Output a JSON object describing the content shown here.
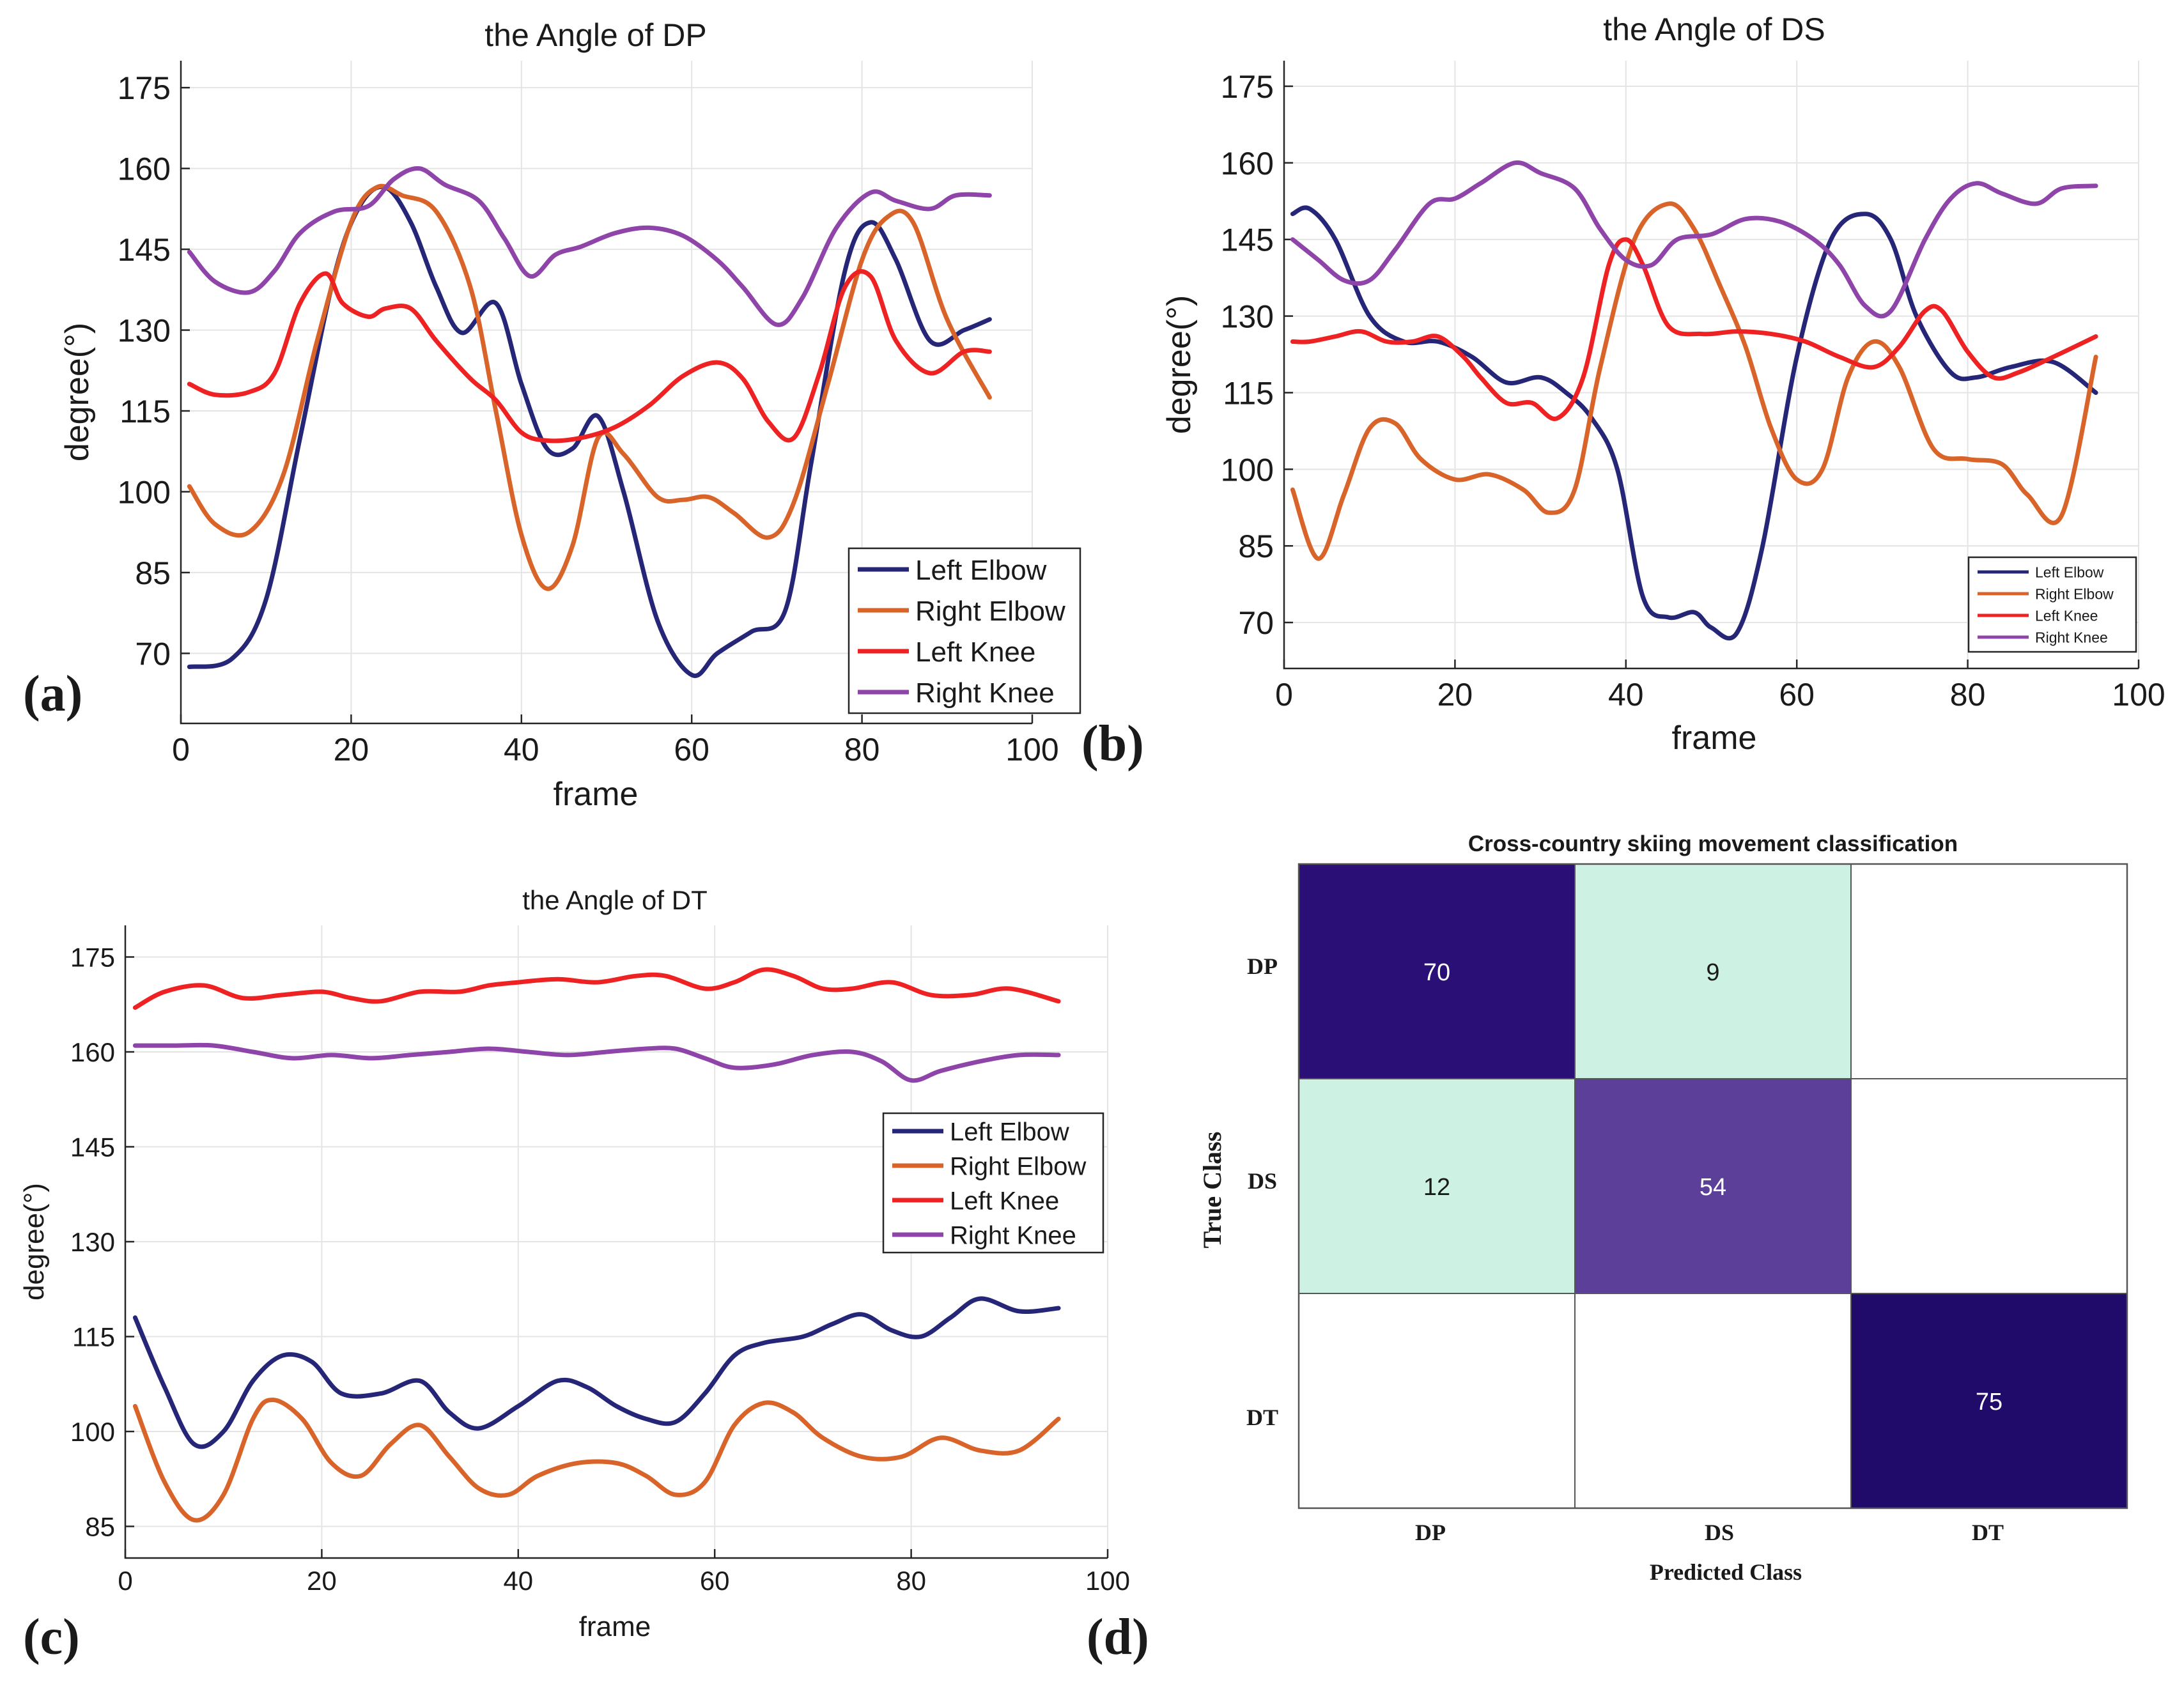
{
  "chart_data": [
    {
      "type": "line",
      "panel_label": "(a)",
      "title": "the Angle of DP",
      "xlabel": "frame",
      "ylabel": "degree(°)",
      "xlim": [
        0,
        100
      ],
      "ylim": [
        57,
        180
      ],
      "xticks": [
        0,
        20,
        40,
        60,
        80,
        100
      ],
      "yticks": [
        70,
        85,
        100,
        115,
        130,
        145,
        160,
        175
      ],
      "grid": true,
      "legend_position": "bottom-right",
      "series": [
        {
          "name": "Left Elbow",
          "color": "#262678",
          "x": [
            1,
            6,
            10,
            14,
            18,
            21,
            24,
            27,
            30,
            33,
            37,
            40,
            43,
            46,
            49,
            52,
            56,
            60,
            63,
            67,
            71,
            74,
            78,
            81,
            84,
            88,
            92,
            95
          ],
          "y": [
            67.5,
            69,
            80,
            110,
            140,
            153,
            156.5,
            150,
            138,
            129.5,
            135,
            120,
            108,
            108,
            114,
            100,
            76,
            66,
            70,
            74,
            78,
            105,
            141,
            150,
            143,
            128,
            130,
            132
          ]
        },
        {
          "name": "Right Elbow",
          "color": "#d9642a",
          "x": [
            1,
            4,
            8,
            12,
            16,
            20,
            23,
            26,
            30,
            34,
            37,
            40,
            43,
            46,
            49,
            52,
            56,
            59,
            62,
            65,
            69,
            72,
            76,
            80,
            83,
            86,
            90,
            95
          ],
          "y": [
            101,
            94,
            92.5,
            103,
            128,
            150,
            156.5,
            155,
            152,
            138,
            115,
            92,
            82,
            90,
            110,
            107,
            99,
            98.5,
            99,
            96,
            91.5,
            98,
            120,
            143,
            151,
            150,
            132,
            117.5
          ]
        },
        {
          "name": "Left Knee",
          "color": "#ee2222",
          "x": [
            1,
            4,
            8,
            11,
            14,
            17,
            19,
            22,
            24,
            27,
            30,
            34,
            37,
            40,
            43,
            47,
            51,
            55,
            59,
            63,
            66,
            69,
            72,
            75,
            78,
            81,
            84,
            88,
            92,
            95
          ],
          "y": [
            120,
            118,
            118.5,
            122,
            135,
            140.5,
            135,
            132.5,
            134,
            134,
            128,
            121,
            117,
            111,
            109.5,
            110,
            112,
            116,
            121.5,
            124,
            121,
            113,
            110,
            122,
            138,
            140,
            128,
            122,
            126,
            126
          ]
        },
        {
          "name": "Right Knee",
          "color": "#8e44a8",
          "x": [
            1,
            4,
            8,
            11,
            14,
            18,
            22,
            25,
            28,
            31,
            35,
            38,
            41,
            44,
            47,
            51,
            55,
            59,
            63,
            66,
            70,
            73,
            77,
            81,
            84,
            88,
            91,
            95
          ],
          "y": [
            144.5,
            139,
            137,
            141,
            148,
            152,
            153,
            158,
            160,
            157,
            154,
            147,
            140,
            144,
            145.5,
            148,
            149,
            147.5,
            143,
            138,
            131,
            136,
            149,
            155.5,
            154,
            152.5,
            155,
            155
          ]
        }
      ]
    },
    {
      "type": "line",
      "panel_label": "(b)",
      "title": "the Angle of DS",
      "xlabel": "frame",
      "ylabel": "degree(°)",
      "xlim": [
        0,
        100
      ],
      "ylim": [
        61,
        180
      ],
      "xticks": [
        0,
        20,
        40,
        60,
        80,
        100
      ],
      "yticks": [
        70,
        85,
        100,
        115,
        130,
        145,
        160,
        175
      ],
      "grid": true,
      "legend_position": "bottom-right",
      "series": [
        {
          "name": "Left Elbow",
          "color": "#262678",
          "x": [
            1,
            3,
            6,
            10,
            14,
            18,
            22,
            26,
            30,
            33,
            36,
            39,
            42,
            45,
            48,
            50,
            53,
            56,
            60,
            64,
            68,
            71,
            74,
            78,
            81,
            85,
            90,
            95
          ],
          "y": [
            150,
            151,
            145,
            130,
            125,
            125,
            122,
            117,
            118,
            115,
            110,
            100,
            75,
            71,
            72,
            69,
            68,
            85,
            122,
            145,
            150,
            145,
            130,
            119,
            118,
            120,
            121,
            115
          ]
        },
        {
          "name": "Right Elbow",
          "color": "#d9642a",
          "x": [
            1,
            4,
            7,
            10,
            13,
            16,
            20,
            24,
            28,
            31,
            34,
            37,
            41,
            45,
            48,
            51,
            54,
            57,
            60,
            63,
            66,
            69,
            72,
            76,
            80,
            84,
            87,
            91,
            95
          ],
          "y": [
            96,
            82.5,
            95,
            108,
            109,
            102,
            98,
            99,
            96,
            91.5,
            96,
            120,
            145,
            152,
            147,
            136,
            124,
            108,
            98,
            100,
            118,
            125,
            120,
            104,
            102,
            101,
            95,
            91,
            122
          ]
        },
        {
          "name": "Left Knee",
          "color": "#ee2222",
          "x": [
            1,
            3,
            6,
            9,
            12,
            15,
            18,
            21,
            23,
            26,
            29,
            32,
            35,
            38,
            40,
            42,
            45,
            49,
            53,
            57,
            61,
            65,
            69,
            72,
            75,
            77,
            80,
            83,
            86,
            90,
            95
          ],
          "y": [
            125,
            125,
            126,
            127,
            125,
            125,
            126,
            122,
            118,
            113,
            113,
            110,
            118,
            140,
            145,
            140,
            128,
            126.5,
            127,
            126.5,
            125,
            122,
            120,
            124,
            131,
            131,
            123,
            118,
            119,
            122,
            126
          ]
        },
        {
          "name": "Right Knee",
          "color": "#8e44a8",
          "x": [
            1,
            4,
            7,
            10,
            13,
            17,
            20,
            23,
            27,
            30,
            34,
            37,
            40,
            43,
            46,
            50,
            54,
            58,
            62,
            65,
            68,
            71,
            75,
            78,
            81,
            84,
            88,
            91,
            95
          ],
          "y": [
            145,
            141,
            137,
            137,
            143,
            152,
            153,
            156,
            160,
            158,
            155,
            147,
            141,
            140,
            145,
            146,
            149,
            148.5,
            145,
            140,
            132,
            131,
            145,
            153,
            156,
            154,
            152,
            155,
            155.5
          ]
        }
      ]
    },
    {
      "type": "line",
      "panel_label": "(c)",
      "title": "the Angle of DT",
      "xlabel": "frame",
      "ylabel": "degree(°)",
      "xlim": [
        0,
        100
      ],
      "ylim": [
        80,
        180
      ],
      "xticks": [
        0,
        20,
        40,
        60,
        80,
        100
      ],
      "yticks": [
        85,
        100,
        115,
        130,
        145,
        160,
        175
      ],
      "grid": true,
      "legend_position": "top-right",
      "series": [
        {
          "name": "Left Elbow",
          "color": "#262678",
          "x": [
            1,
            4,
            7,
            10,
            13,
            16,
            19,
            22,
            26,
            30,
            33,
            36,
            40,
            44,
            47,
            50,
            53,
            56,
            59,
            62,
            65,
            69,
            72,
            75,
            78,
            81,
            84,
            87,
            91,
            95
          ],
          "y": [
            118,
            107,
            98,
            100,
            108,
            112,
            111,
            106,
            106,
            108,
            103,
            100.5,
            104,
            108,
            107,
            104,
            102,
            101.5,
            106,
            112,
            114,
            115,
            117,
            118.5,
            116,
            115,
            118,
            121,
            119,
            119.5
          ]
        },
        {
          "name": "Right Elbow",
          "color": "#d9642a",
          "x": [
            1,
            4,
            7,
            10,
            13,
            15,
            18,
            21,
            24,
            27,
            30,
            33,
            36,
            39,
            42,
            46,
            50,
            53,
            56,
            59,
            62,
            65,
            68,
            71,
            75,
            79,
            83,
            87,
            91,
            95
          ],
          "y": [
            104,
            92,
            86,
            90,
            102,
            105,
            102,
            95,
            93,
            98,
            101,
            96,
            91,
            90,
            93,
            95,
            95,
            93,
            90,
            92,
            101,
            104.5,
            103,
            99,
            96,
            96,
            99,
            97,
            97,
            102
          ]
        },
        {
          "name": "Left Knee",
          "color": "#ee2222",
          "x": [
            1,
            4,
            8,
            12,
            16,
            20,
            23,
            26,
            30,
            34,
            37,
            40,
            44,
            48,
            52,
            55,
            59,
            62,
            65,
            68,
            71,
            74,
            78,
            82,
            86,
            90,
            95
          ],
          "y": [
            167,
            169.5,
            170.5,
            168.5,
            169,
            169.5,
            168.5,
            168,
            169.5,
            169.5,
            170.5,
            171,
            171.5,
            171,
            172,
            172,
            170,
            171,
            173,
            172,
            170,
            170,
            171,
            169,
            169,
            170,
            168
          ]
        },
        {
          "name": "Right Knee",
          "color": "#8e44a8",
          "x": [
            1,
            5,
            9,
            13,
            17,
            21,
            25,
            29,
            33,
            37,
            41,
            45,
            49,
            53,
            56,
            59,
            62,
            66,
            70,
            74,
            77,
            80,
            83,
            87,
            91,
            95
          ],
          "y": [
            161,
            161,
            161,
            160,
            159,
            159.5,
            159,
            159.5,
            160,
            160.5,
            160,
            159.5,
            160,
            160.5,
            160.5,
            159,
            157.5,
            158,
            159.5,
            160,
            158.5,
            155.5,
            157,
            158.5,
            159.5,
            159.5
          ]
        }
      ]
    },
    {
      "type": "heatmap",
      "panel_label": "(d)",
      "title": "Cross-country skiing movement classification",
      "xlabel": "Predicted Class",
      "ylabel": "True Class",
      "x_categories": [
        "DP",
        "DS",
        "DT"
      ],
      "y_categories": [
        "DP",
        "DS",
        "DT"
      ],
      "values": [
        [
          70,
          9,
          null
        ],
        [
          12,
          54,
          null
        ],
        [
          null,
          null,
          75
        ]
      ],
      "cell_colors": [
        [
          "#2a0f77",
          "#cdf2e3",
          "#ffffff"
        ],
        [
          "#cdf2e3",
          "#5b3f99",
          "#ffffff"
        ],
        [
          "#ffffff",
          "#ffffff",
          "#200b6b"
        ]
      ]
    }
  ]
}
